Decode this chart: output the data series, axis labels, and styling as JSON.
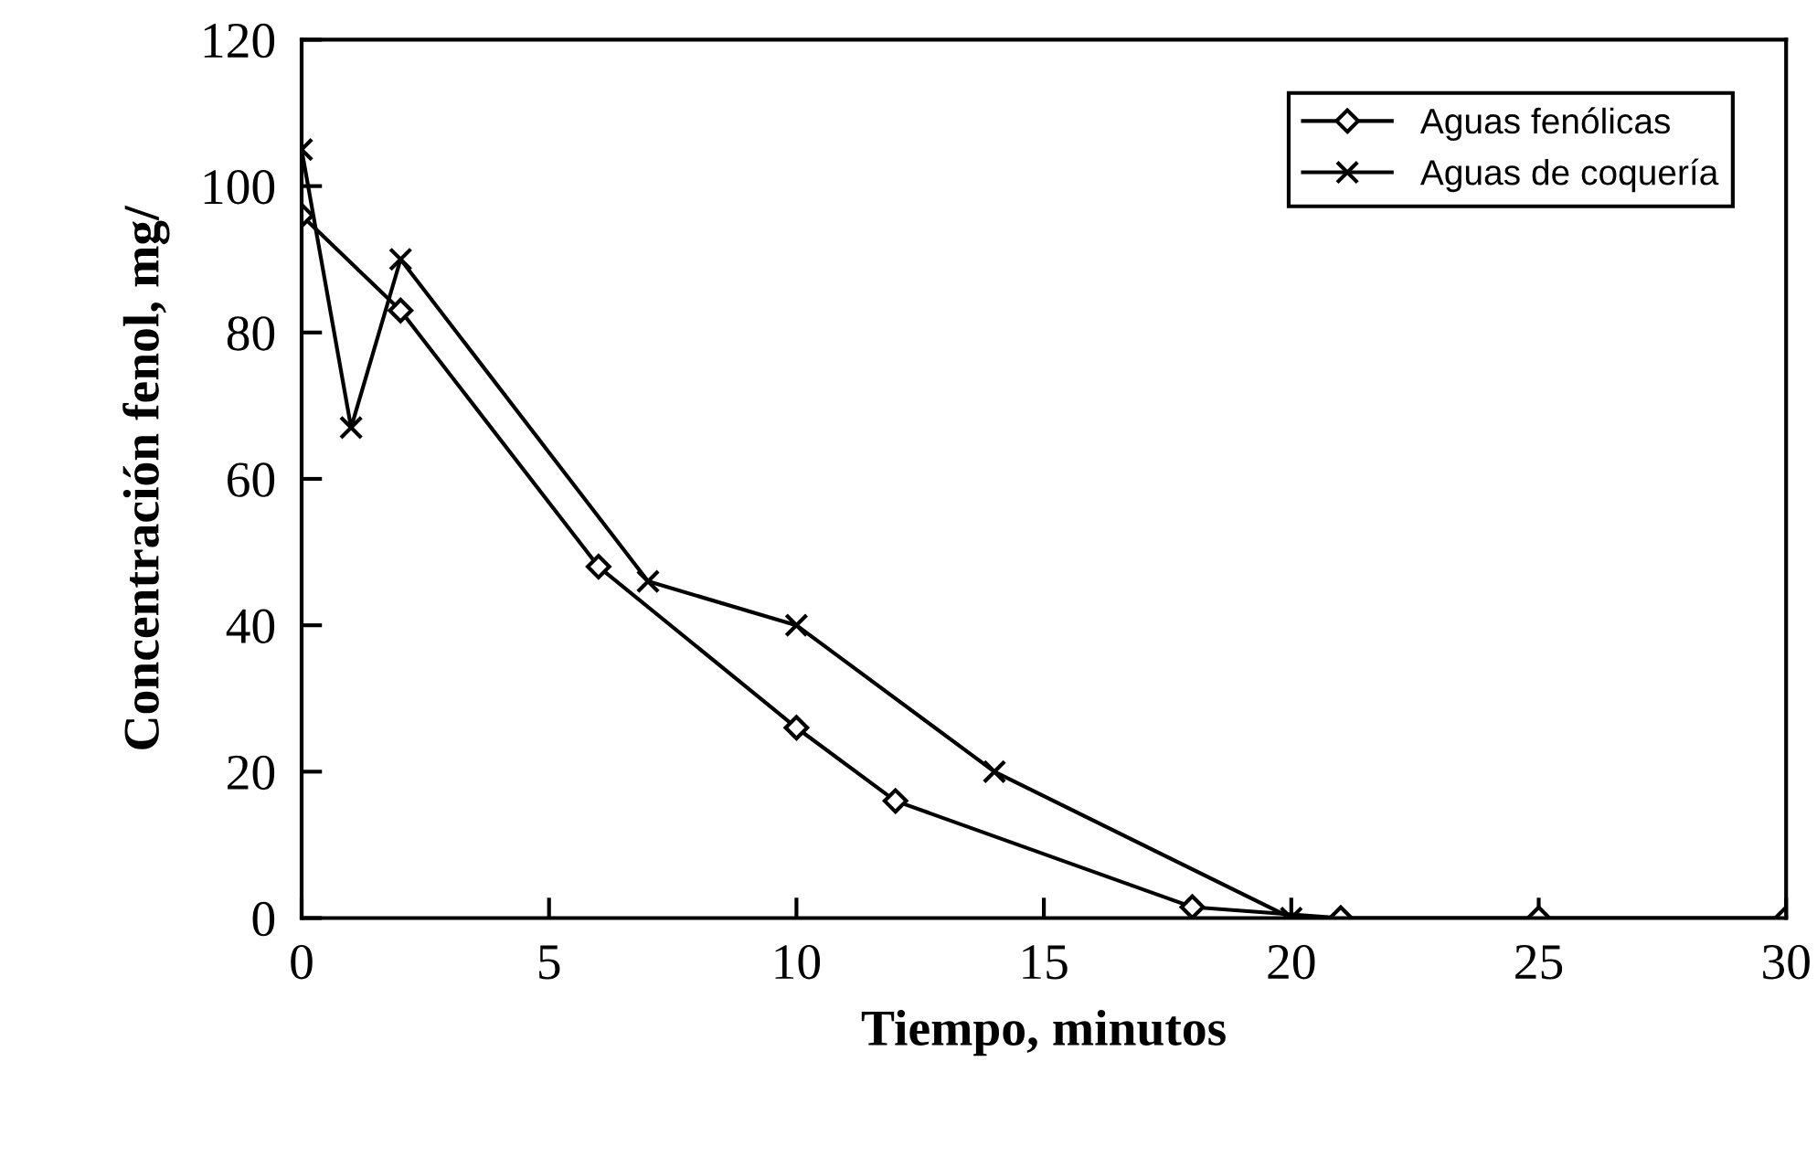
{
  "chart_data": {
    "type": "line",
    "xlabel": "Tiempo, minutos",
    "ylabel": "Concentración fenol, mg/",
    "series": [
      {
        "name": "Aguas fenólicas",
        "color": "#000000",
        "marker": "diamond",
        "x": [
          0,
          2,
          6,
          10,
          12,
          18,
          21,
          25,
          30
        ],
        "values": [
          96,
          83,
          48,
          26,
          16,
          1.5,
          0,
          0,
          0
        ]
      },
      {
        "name": "Aguas de coquería",
        "color": "#000000",
        "marker": "cross",
        "x": [
          0,
          1,
          2,
          7,
          10,
          14,
          20
        ],
        "values": [
          105,
          67,
          90,
          46,
          40,
          20,
          0
        ]
      }
    ],
    "xlim": [
      0,
      30
    ],
    "xticks": [
      0,
      5,
      10,
      15,
      20,
      25,
      30
    ],
    "ylim": [
      0,
      120
    ],
    "yticks": [
      0,
      20,
      40,
      60,
      80,
      100,
      120
    ],
    "grid": false,
    "legend": "top right",
    "line_style": "solid"
  }
}
